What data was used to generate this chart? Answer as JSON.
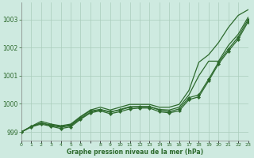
{
  "background_color": "#ceeae0",
  "plot_bg_color": "#ceeae0",
  "line_color": "#2d6a2d",
  "grid_color": "#aaccbb",
  "xlabel": "Graphe pression niveau de la mer (hPa)",
  "ylim": [
    998.7,
    1003.6
  ],
  "xlim": [
    0,
    23
  ],
  "yticks": [
    999,
    1000,
    1001,
    1002,
    1003
  ],
  "xtick_labels": [
    "0",
    "1",
    "2",
    "3",
    "4",
    "5",
    "6",
    "",
    "8",
    "9",
    "10",
    "11",
    "12",
    "13",
    "14",
    "15",
    "16",
    "17",
    "18",
    "19",
    "20",
    "21",
    "22",
    "23"
  ],
  "series_no_marker_1": [
    999.0,
    999.2,
    999.38,
    999.28,
    999.22,
    999.28,
    999.55,
    999.78,
    999.88,
    999.78,
    999.88,
    999.98,
    999.98,
    999.98,
    999.88,
    999.88,
    999.98,
    1000.48,
    1001.48,
    1001.75,
    1002.18,
    1002.72,
    1003.15,
    1003.35
  ],
  "series_no_marker_2": [
    999.0,
    999.18,
    999.32,
    999.22,
    999.17,
    999.22,
    999.48,
    999.7,
    999.8,
    999.7,
    999.8,
    999.9,
    999.9,
    999.9,
    999.8,
    999.78,
    999.88,
    1000.32,
    1001.0,
    1001.52,
    1001.52,
    1002.08,
    1002.48,
    1003.08
  ],
  "series_with_marker_1": [
    999.0,
    999.2,
    999.32,
    999.25,
    999.2,
    999.25,
    999.52,
    999.75,
    999.8,
    999.72,
    999.78,
    999.88,
    999.9,
    999.9,
    999.78,
    999.72,
    999.82,
    1000.22,
    1000.32,
    1000.88,
    1001.48,
    1001.95,
    1002.38,
    1003.0
  ],
  "series_with_marker_2": [
    999.0,
    999.18,
    999.28,
    999.2,
    999.12,
    999.18,
    999.45,
    999.68,
    999.75,
    999.65,
    999.72,
    999.82,
    999.85,
    999.85,
    999.72,
    999.68,
    999.75,
    1000.15,
    1000.25,
    1000.82,
    1001.42,
    1001.88,
    1002.3,
    1002.92
  ]
}
